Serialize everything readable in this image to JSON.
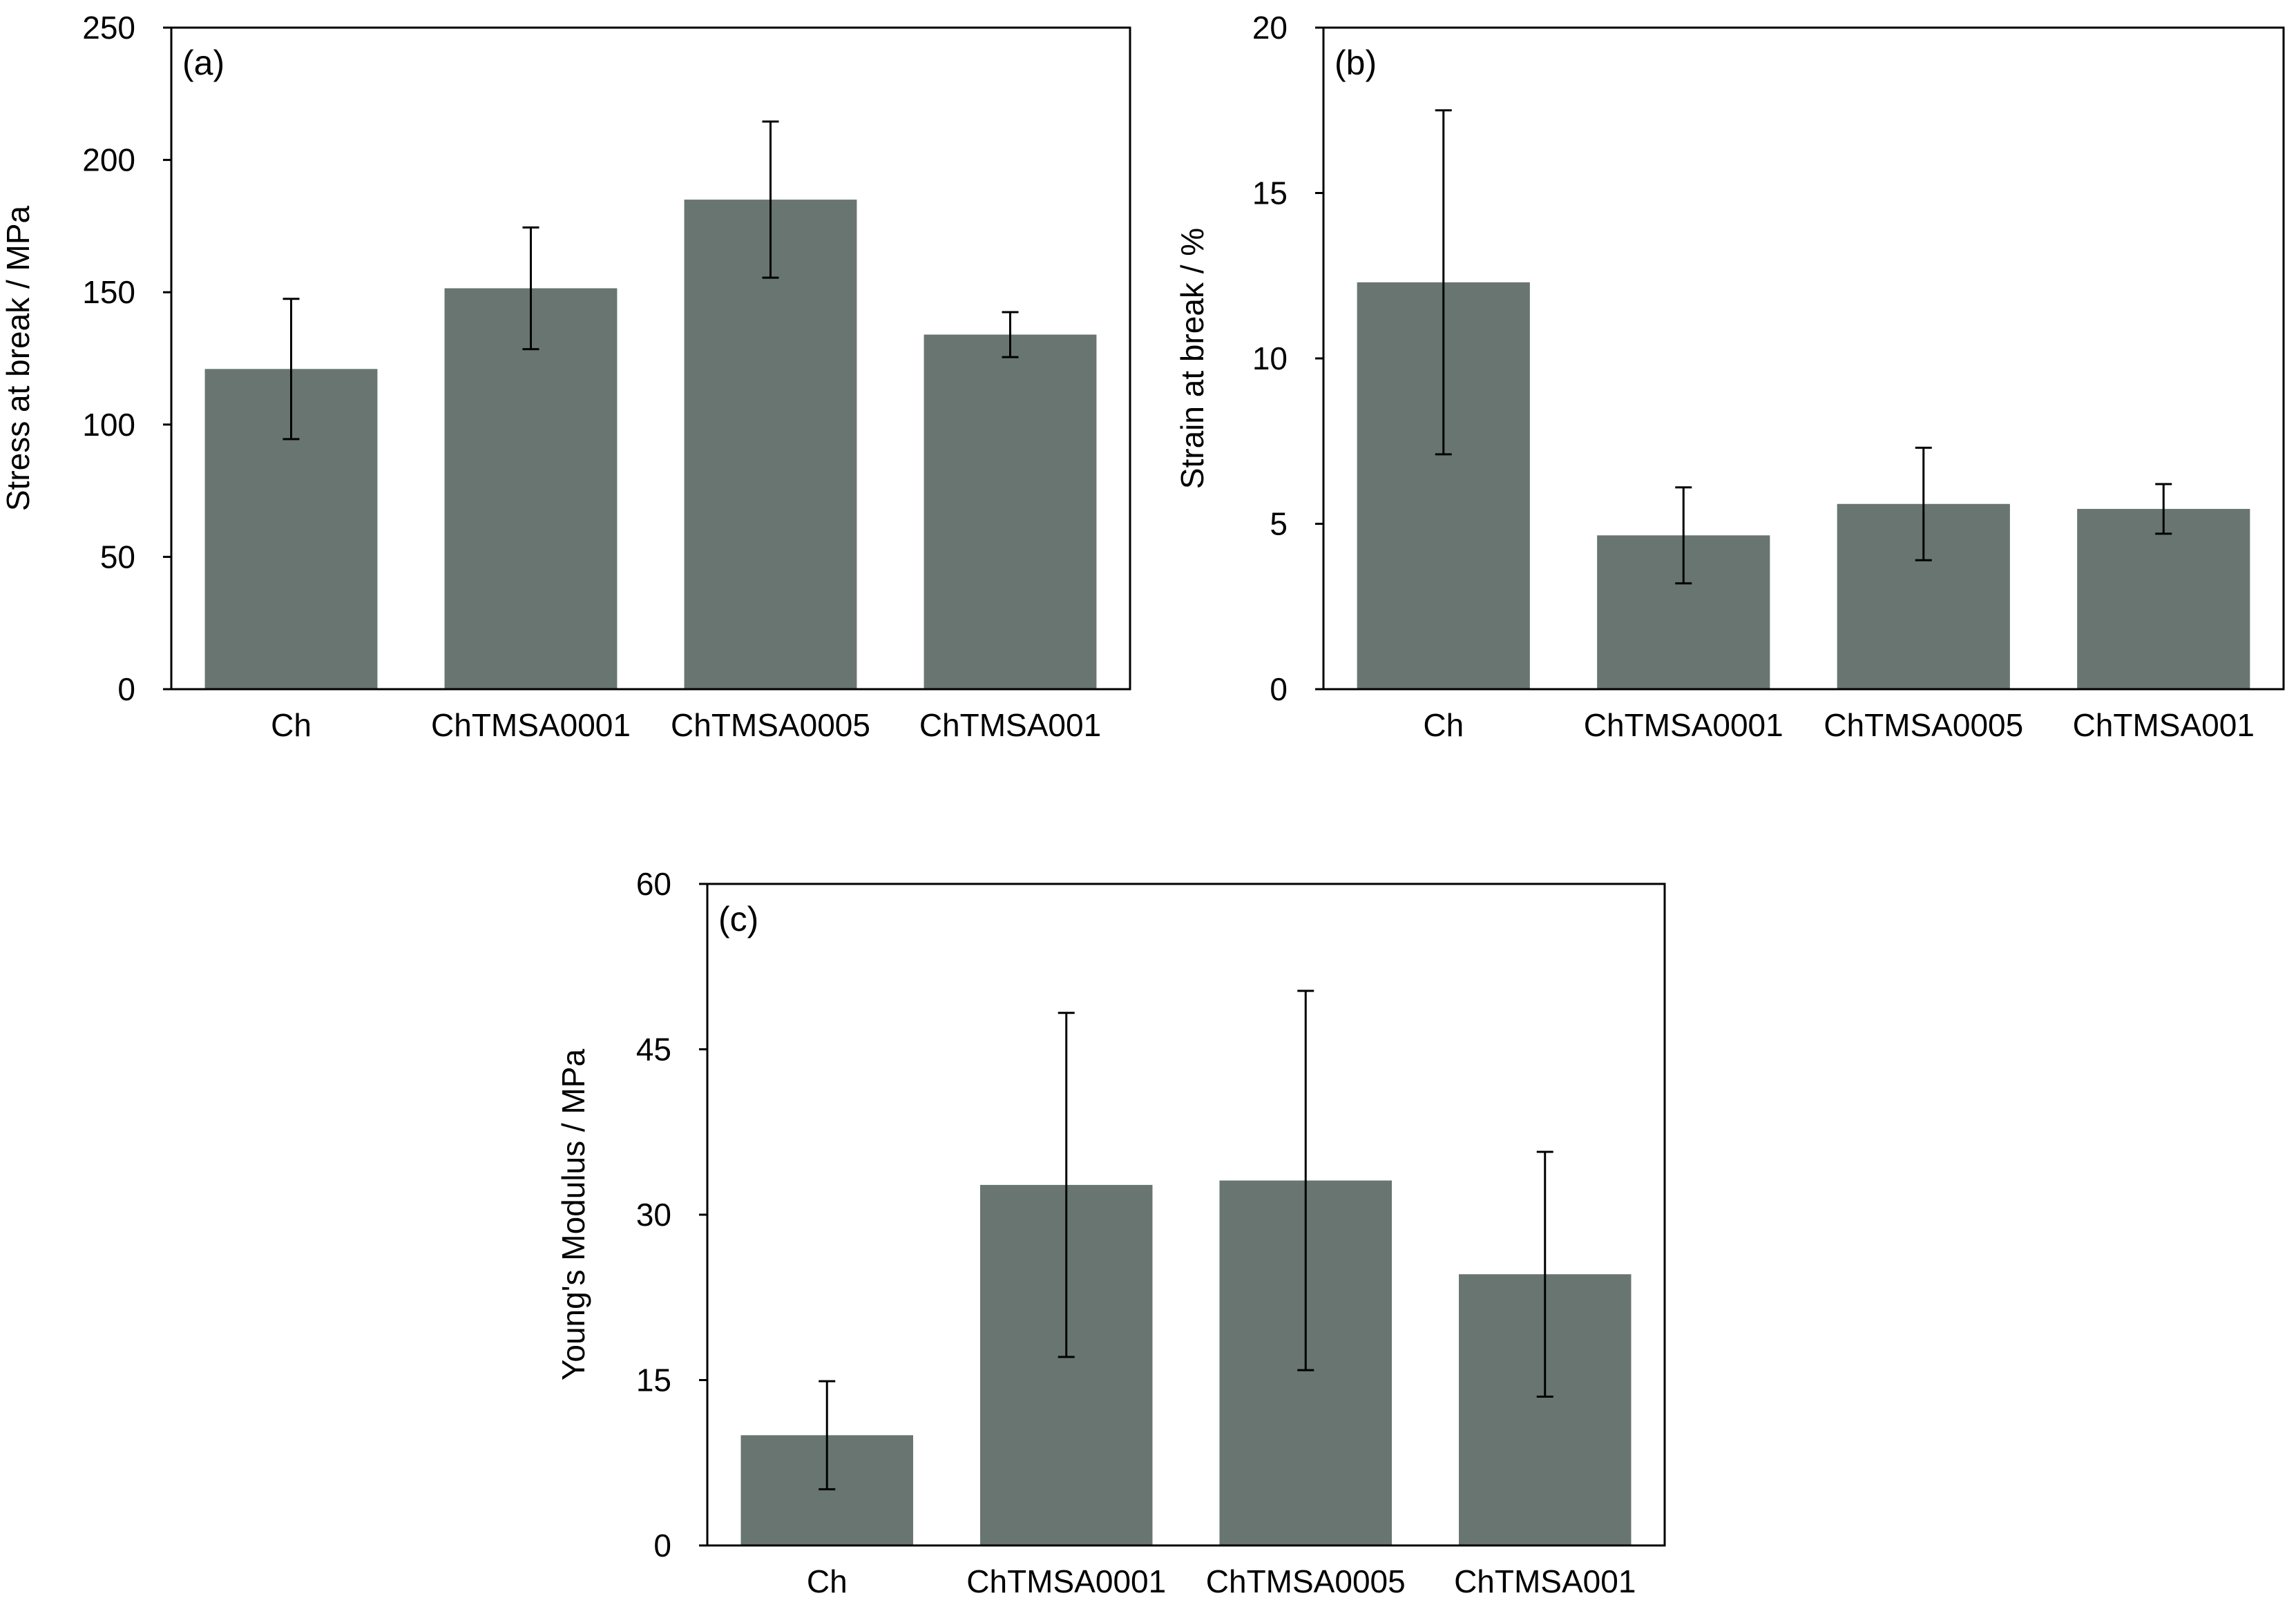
{
  "colors": {
    "bar": "#687571",
    "axis": "#000000",
    "background": "#ffffff"
  },
  "chart_data": [
    {
      "type": "bar",
      "panel_label": "(a)",
      "title": "",
      "xlabel": "",
      "ylabel": "Stress at break / MPa",
      "ylim": [
        0,
        250
      ],
      "yticks": [
        0,
        50,
        100,
        150,
        200,
        250
      ],
      "categories": [
        "Ch",
        "ChTMSA0001",
        "ChTMSA0005",
        "ChTMSA001"
      ],
      "values": [
        121,
        151.5,
        185,
        134
      ],
      "errors": [
        26.5,
        23,
        29.5,
        8.5
      ],
      "grid": false,
      "legend": "none"
    },
    {
      "type": "bar",
      "panel_label": "(b)",
      "title": "",
      "xlabel": "",
      "ylabel": "Strain at break / %",
      "ylim": [
        0,
        20
      ],
      "yticks": [
        0,
        5,
        10,
        15,
        20
      ],
      "categories": [
        "Ch",
        "ChTMSA0001",
        "ChTMSA0005",
        "ChTMSA001"
      ],
      "values": [
        12.3,
        4.65,
        5.6,
        5.45
      ],
      "errors": [
        5.2,
        1.45,
        1.7,
        0.75
      ],
      "grid": false,
      "legend": "none"
    },
    {
      "type": "bar",
      "panel_label": "(c)",
      "title": "",
      "xlabel": "",
      "ylabel": "Young's Modulus / MPa",
      "ylim": [
        0,
        60
      ],
      "yticks": [
        0,
        15,
        30,
        45,
        60
      ],
      "categories": [
        "Ch",
        "ChTMSA0001",
        "ChTMSA0005",
        "ChTMSA001"
      ],
      "values": [
        10,
        32.7,
        33.1,
        24.6
      ],
      "errors": [
        4.9,
        15.6,
        17.2,
        11.1
      ],
      "grid": false,
      "legend": "none"
    }
  ]
}
